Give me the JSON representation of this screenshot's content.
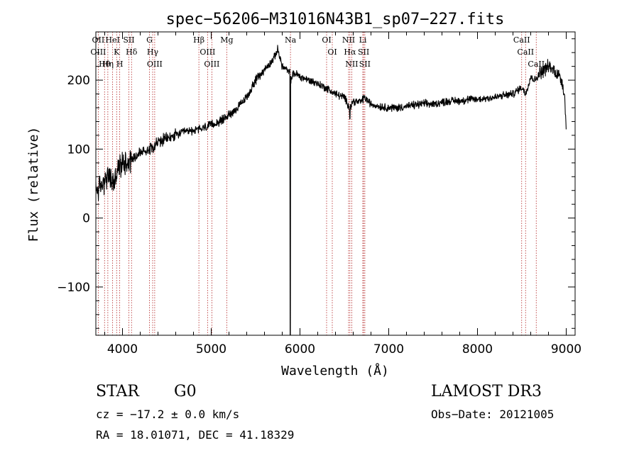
{
  "chart_data": {
    "type": "line",
    "title": "spec−56206−M31016N43B1_sp07−227.fits",
    "xlabel": "Wavelength (Å)",
    "ylabel": "Flux (relative)",
    "xlim": [
      3700,
      9100
    ],
    "ylim": [
      -170,
      270
    ],
    "x_ticks": [
      4000,
      5000,
      6000,
      7000,
      8000,
      9000
    ],
    "x_tick_labels": [
      "4000",
      "5000",
      "6000",
      "7000",
      "8000",
      "9000"
    ],
    "y_ticks": [
      -100,
      0,
      100,
      200
    ],
    "y_tick_labels": [
      "−100",
      "0",
      "100",
      "200"
    ],
    "grid": false,
    "series": [
      {
        "name": "flux",
        "x": [
          3700,
          3750,
          3800,
          3850,
          3900,
          3950,
          4000,
          4100,
          4200,
          4300,
          4400,
          4500,
          4600,
          4700,
          4800,
          4900,
          5000,
          5100,
          5200,
          5300,
          5400,
          5500,
          5600,
          5700,
          5750,
          5800,
          5850,
          5880,
          5890,
          5895,
          5900,
          5920,
          5950,
          6000,
          6100,
          6200,
          6300,
          6400,
          6500,
          6562,
          6600,
          6650,
          6700,
          6720,
          6750,
          6800,
          6900,
          7000,
          7100,
          7200,
          7300,
          7400,
          7500,
          7600,
          7700,
          7800,
          7900,
          8000,
          8100,
          8200,
          8300,
          8400,
          8500,
          8540,
          8600,
          8650,
          8700,
          8750,
          8800,
          8850,
          8900,
          8950,
          8980,
          9000
        ],
        "y": [
          40,
          45,
          55,
          60,
          50,
          70,
          80,
          85,
          95,
          100,
          110,
          115,
          120,
          125,
          127,
          130,
          135,
          140,
          150,
          160,
          175,
          200,
          215,
          230,
          245,
          220,
          215,
          210,
          212,
          205,
          200,
          208,
          210,
          205,
          200,
          195,
          188,
          180,
          175,
          160,
          170,
          168,
          170,
          175,
          172,
          165,
          162,
          160,
          160,
          162,
          164,
          166,
          165,
          168,
          170,
          170,
          172,
          172,
          174,
          175,
          178,
          180,
          190,
          180,
          205,
          200,
          210,
          215,
          220,
          215,
          210,
          200,
          180,
          130
        ],
        "notes": "noisy stellar spectrum; deep narrow absorption spike near 5890 Å reaching below the plot floor"
      }
    ],
    "line_markers": [
      {
        "label": "Hθ",
        "wavelength": 3798
      },
      {
        "label": "OII",
        "wavelength": 3727
      },
      {
        "label": "OIII",
        "wavelength": 3727
      },
      {
        "label": "Hη",
        "wavelength": 3835
      },
      {
        "label": "HeI",
        "wavelength": 3889
      },
      {
        "label": "K",
        "wavelength": 3934
      },
      {
        "label": "H",
        "wavelength": 3969
      },
      {
        "label": "SII",
        "wavelength": 4072
      },
      {
        "label": "Hδ",
        "wavelength": 4102
      },
      {
        "label": "OIII",
        "wavelength": 4363
      },
      {
        "label": "Hγ",
        "wavelength": 4340
      },
      {
        "label": "G",
        "wavelength": 4304
      },
      {
        "label": "Hβ",
        "wavelength": 4861
      },
      {
        "label": "OIII",
        "wavelength": 4959
      },
      {
        "label": "OIII",
        "wavelength": 5007
      },
      {
        "label": "Mg",
        "wavelength": 5175
      },
      {
        "label": "Na",
        "wavelength": 5893
      },
      {
        "label": "OI",
        "wavelength": 6300
      },
      {
        "label": "OI",
        "wavelength": 6364
      },
      {
        "label": "Hα",
        "wavelength": 6563
      },
      {
        "label": "NII",
        "wavelength": 6548
      },
      {
        "label": "NII",
        "wavelength": 6583
      },
      {
        "label": "SII",
        "wavelength": 6717
      },
      {
        "label": "SII",
        "wavelength": 6731
      },
      {
        "label": "Li",
        "wavelength": 6708
      },
      {
        "label": "CaII",
        "wavelength": 8498
      },
      {
        "label": "CaII",
        "wavelength": 8542
      },
      {
        "label": "CaII",
        "wavelength": 8662
      }
    ]
  },
  "info": {
    "object_class": "STAR",
    "subclass": "G0",
    "survey": "LAMOST DR3",
    "cz_line": "cz = −17.2 ± 0.0 km/s",
    "obs_date_line": "Obs−Date: 20121005",
    "coords_line": "RA =  18.01071, DEC =  41.18329"
  },
  "colors": {
    "spectrum": "#000000",
    "marker_line": "#b22222",
    "marker_text": "#000000"
  }
}
